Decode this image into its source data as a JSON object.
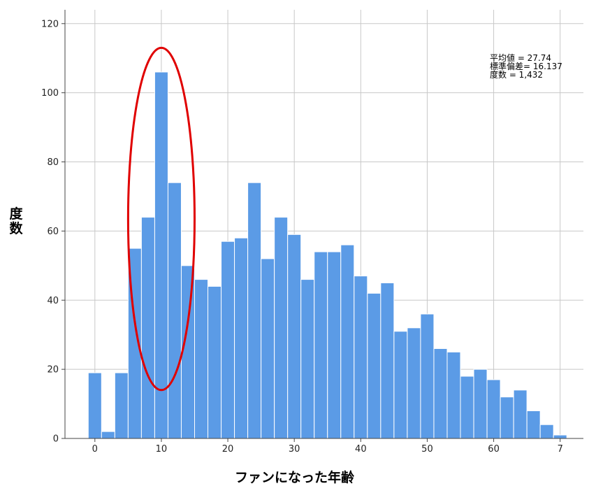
{
  "chart_data": {
    "type": "bar",
    "title": "",
    "xlabel": "ファンになった年齢",
    "ylabel": "度数",
    "xlim": [
      -4.5,
      73.5
    ],
    "ylim": [
      0,
      124
    ],
    "grid": true,
    "bin_width": 2,
    "x_ticks": [
      "0",
      "10",
      "20",
      "30",
      "40",
      "50",
      "60",
      "7"
    ],
    "y_ticks": [
      "0",
      "20",
      "40",
      "60",
      "80",
      "100",
      "120"
    ],
    "bin_starts": [
      -1,
      1,
      3,
      5,
      7,
      9,
      11,
      13,
      15,
      17,
      19,
      21,
      23,
      25,
      27,
      29,
      31,
      33,
      35,
      37,
      39,
      41,
      43,
      45,
      47,
      49,
      51,
      53,
      55,
      57,
      59,
      61,
      63,
      65,
      67,
      69
    ],
    "values": [
      19,
      2,
      19,
      55,
      64,
      106,
      74,
      50,
      46,
      44,
      57,
      58,
      74,
      52,
      64,
      59,
      46,
      54,
      54,
      56,
      47,
      42,
      45,
      31,
      32,
      36,
      26,
      25,
      18,
      20,
      17,
      12,
      14,
      8,
      4,
      1
    ],
    "bar_color": "#5b9be6",
    "highlight": {
      "shape": "ellipse",
      "color": "#e00000",
      "x_range": [
        5,
        15
      ],
      "y_range": [
        14,
        113
      ]
    },
    "stats_legend": {
      "mean": "平均値 = 27.74",
      "sd": "標準偏差= 16.137",
      "n": "度数 = 1,432"
    }
  }
}
